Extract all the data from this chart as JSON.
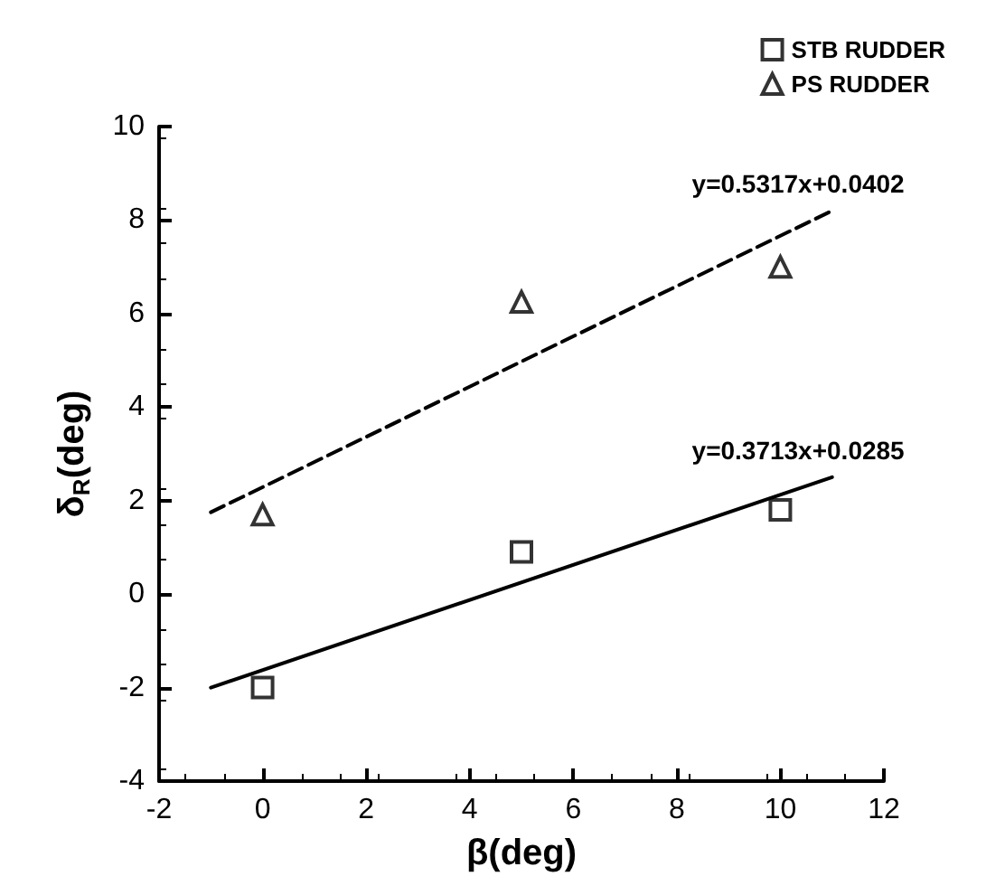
{
  "chart_data": {
    "type": "scatter",
    "xlabel": "β(deg)",
    "ylabel": "δ$_{R}$(deg)",
    "xlim": [
      -2,
      12
    ],
    "xticks": [
      -2,
      0,
      2,
      4,
      6,
      8,
      10,
      12
    ],
    "ylim": [
      -4,
      10
    ],
    "yticks": [
      -4,
      -2,
      0,
      2,
      4,
      6,
      8,
      10
    ],
    "grid": false,
    "legend": "top right",
    "series": [
      {
        "name": "STB RUDDER",
        "marker": "square",
        "color": "#000000",
        "x": [
          0,
          5,
          10
        ],
        "values": [
          -2,
          0.9,
          1.8
        ]
      },
      {
        "type": "line",
        "marker": "none",
        "line_style": "solid",
        "color": "#000000",
        "x": [
          -1,
          11
        ],
        "values": [
          -2,
          2.5
        ]
      },
      {
        "name": "PS RUDDER",
        "marker": "triangle",
        "color": "#000000",
        "x": [
          0,
          5,
          10
        ],
        "values": [
          1.7,
          6.25,
          7.0
        ]
      },
      {
        "type": "line",
        "marker": "none",
        "line_style": "dashed",
        "color": "#000000",
        "x": [
          -1,
          11
        ],
        "values": [
          1.75,
          8.2
        ]
      }
    ],
    "annotations": [
      {
        "text": "y=0.5317x+0.0402",
        "x": 11,
        "y": 8.2
      },
      {
        "text": "y=0.3713x+0.0285",
        "x": 11,
        "y": 2.5
      }
    ]
  }
}
